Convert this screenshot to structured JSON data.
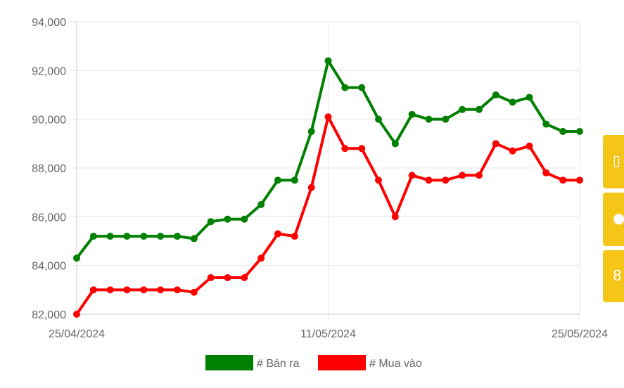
{
  "chart_data": {
    "type": "line",
    "x_tick_labels": [
      "25/04/2024",
      "11/05/2024",
      "25/05/2024"
    ],
    "y_tick_labels": [
      "82,000",
      "84,000",
      "86,000",
      "88,000",
      "90,000",
      "92,000",
      "94,000"
    ],
    "ylim": [
      82000,
      94000
    ],
    "grid": true,
    "legend_position": "bottom",
    "series": [
      {
        "name": "# Bán ra",
        "color": "#008000",
        "values": [
          84300,
          85200,
          85200,
          85200,
          85200,
          85200,
          85200,
          85100,
          85800,
          85900,
          85900,
          86500,
          87500,
          87500,
          89500,
          92400,
          91300,
          91300,
          90000,
          89000,
          90200,
          90000,
          90000,
          90400,
          90400,
          91000,
          90700,
          90900,
          89800,
          89500,
          89500
        ]
      },
      {
        "name": "# Mua vào",
        "color": "#ff0000",
        "values": [
          82000,
          83000,
          83000,
          83000,
          83000,
          83000,
          83000,
          82900,
          83500,
          83500,
          83500,
          84300,
          85300,
          85200,
          87200,
          90100,
          88800,
          88800,
          87500,
          86000,
          87700,
          87500,
          87500,
          87700,
          87700,
          89000,
          88700,
          88900,
          87800,
          87500,
          87500
        ]
      }
    ]
  },
  "side_tabs": [
    {
      "icon": "calendar-icon",
      "glyph": "▯"
    },
    {
      "icon": "circle-icon",
      "glyph": "●"
    },
    {
      "icon": "number-icon",
      "glyph": "8"
    }
  ]
}
